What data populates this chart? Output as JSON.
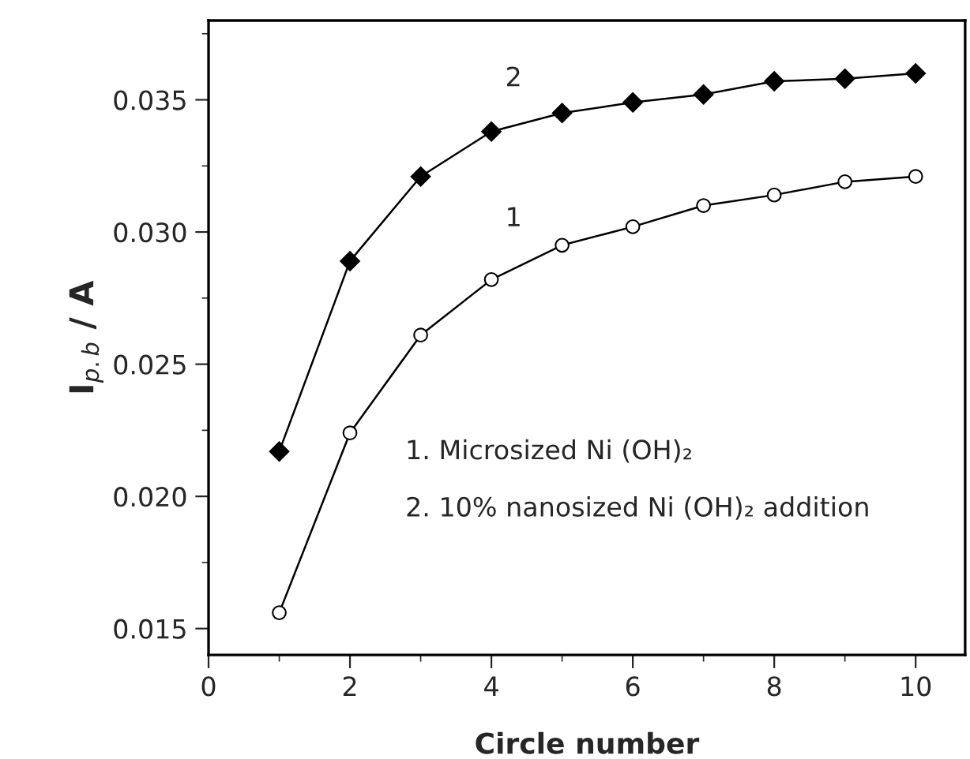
{
  "chart_data": {
    "type": "line",
    "xlabel": "Circle number",
    "ylabel": "I$_{p.b}$ / A",
    "x": [
      1,
      2,
      3,
      4,
      5,
      6,
      7,
      8,
      9,
      10
    ],
    "series": [
      {
        "name": "1",
        "color": "#000000",
        "marker": "circle",
        "values": [
          0.0156,
          0.0224,
          0.0261,
          0.0282,
          0.0295,
          0.0302,
          0.031,
          0.0314,
          0.0319,
          0.0321
        ]
      },
      {
        "name": "2",
        "color": "#000000",
        "marker": "diamond",
        "values": [
          0.0217,
          0.0289,
          0.0321,
          0.0338,
          0.0345,
          0.0349,
          0.0352,
          0.0357,
          0.0358,
          0.036
        ]
      }
    ],
    "xlim": [
      0,
      10.7
    ],
    "ylim": [
      0.014,
      0.038
    ],
    "xticks": [
      0,
      2,
      4,
      6,
      8,
      10
    ],
    "yticks": [
      {
        "value": 0.015,
        "label": "0.015"
      },
      {
        "value": 0.02,
        "label": "0.020"
      },
      {
        "value": 0.025,
        "label": "0.025"
      },
      {
        "value": 0.03,
        "label": "0.030"
      },
      {
        "value": 0.035,
        "label": "0.035"
      }
    ],
    "annotations": [
      "1. Microsized Ni (OH)₂",
      "2. 10% nanosized Ni (OH)₂ addition"
    ],
    "grid": false,
    "legend": false,
    "line_style": "solid"
  }
}
